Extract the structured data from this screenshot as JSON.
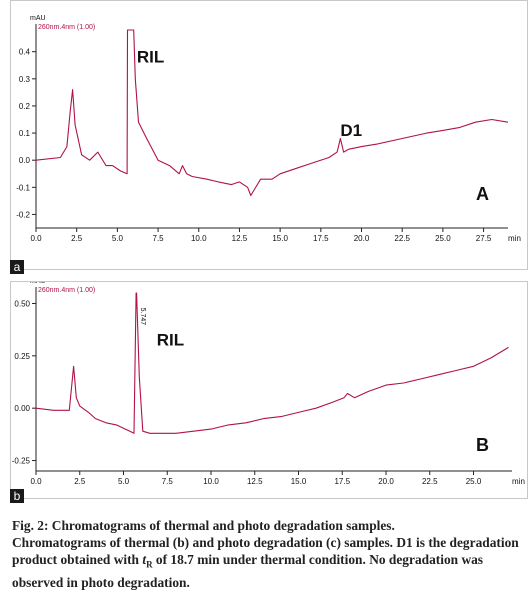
{
  "colors": {
    "trace": "#b0124a",
    "axis": "#222222",
    "text": "#111111",
    "tag_bg": "#1a1a1a"
  },
  "chart_data": [
    {
      "type": "line",
      "panel_tag": "a",
      "ylabel": "mAU",
      "method_label": "260nm.4nm (1.00)",
      "xlabel": "min",
      "panel_label": "A",
      "xlim": [
        0,
        29
      ],
      "ylim": [
        -0.25,
        0.48
      ],
      "xticks": [
        "0.0",
        "2.5",
        "5.0",
        "7.5",
        "10.0",
        "12.5",
        "15.0",
        "17.5",
        "20.0",
        "22.5",
        "25.0",
        "27.5"
      ],
      "yticks": [
        "0.4",
        "0.3",
        "0.2",
        "0.1",
        "0.0",
        "-0.1",
        "-0.2"
      ],
      "annotations": [
        {
          "text": "RIL",
          "x": 6.2,
          "y": 0.36
        },
        {
          "text": "D1",
          "x": 18.7,
          "y": 0.09
        }
      ],
      "series": [
        {
          "x": [
            0,
            1.5,
            1.9,
            2.1,
            2.25,
            2.4,
            2.8,
            3.3,
            3.8,
            4.3,
            4.7,
            5.2,
            5.6,
            5.62,
            6.0,
            6.1,
            6.3,
            6.8,
            7.5,
            8.2,
            8.8,
            9.0,
            9.25,
            9.6,
            10.5,
            11.2,
            12.0,
            12.5,
            13.0,
            13.2,
            13.4,
            13.8,
            14.5,
            15.0,
            16.0,
            17.0,
            18.0,
            18.5,
            18.7,
            18.9,
            19.2,
            20.0,
            21.0,
            22.5,
            24.0,
            25.0,
            26.0,
            27.0,
            28.0,
            29.0
          ],
          "y": [
            0.0,
            0.01,
            0.05,
            0.18,
            0.26,
            0.13,
            0.02,
            0.0,
            0.03,
            -0.02,
            -0.02,
            -0.04,
            -0.05,
            0.48,
            0.48,
            0.3,
            0.14,
            0.08,
            0.0,
            -0.02,
            -0.05,
            -0.02,
            -0.05,
            -0.06,
            -0.07,
            -0.08,
            -0.09,
            -0.08,
            -0.1,
            -0.13,
            -0.11,
            -0.07,
            -0.07,
            -0.05,
            -0.03,
            -0.01,
            0.01,
            0.03,
            0.08,
            0.03,
            0.04,
            0.05,
            0.06,
            0.08,
            0.1,
            0.11,
            0.12,
            0.14,
            0.15,
            0.14
          ]
        }
      ]
    },
    {
      "type": "line",
      "panel_tag": "b",
      "ylabel": "mAU",
      "method_label": "260nm.4nm (1.00)",
      "xlabel": "min",
      "panel_label": "B",
      "xlim": [
        0,
        27.2
      ],
      "ylim": [
        -0.3,
        0.55
      ],
      "xticks": [
        "0.0",
        "2.5",
        "5.0",
        "7.5",
        "10.0",
        "12.5",
        "15.0",
        "17.5",
        "20.0",
        "22.5",
        "25.0"
      ],
      "yticks": [
        "0.50",
        "0.25",
        "0.00",
        "-0.25"
      ],
      "annotations": [
        {
          "text": "RIL",
          "x": 6.9,
          "y": 0.3
        },
        {
          "text": "5.747",
          "x": 6.0,
          "y": 0.48
        }
      ],
      "series": [
        {
          "x": [
            0,
            1.0,
            1.9,
            2.15,
            2.3,
            2.5,
            3.0,
            3.4,
            4.0,
            4.6,
            5.1,
            5.6,
            5.72,
            5.75,
            5.9,
            6.1,
            6.5,
            7.0,
            8.0,
            9.0,
            10.0,
            11.0,
            12.0,
            13.0,
            14.0,
            15.0,
            16.0,
            17.0,
            17.6,
            17.8,
            18.2,
            19.0,
            20.0,
            21.0,
            22.0,
            23.0,
            24.0,
            25.0,
            26.0,
            27.0
          ],
          "y": [
            0.0,
            -0.01,
            -0.01,
            0.2,
            0.05,
            0.01,
            -0.02,
            -0.05,
            -0.07,
            -0.08,
            -0.1,
            -0.12,
            0.55,
            0.55,
            0.15,
            -0.11,
            -0.12,
            -0.12,
            -0.12,
            -0.11,
            -0.1,
            -0.08,
            -0.07,
            -0.05,
            -0.04,
            -0.02,
            0.0,
            0.03,
            0.05,
            0.07,
            0.05,
            0.08,
            0.11,
            0.12,
            0.14,
            0.16,
            0.18,
            0.2,
            0.24,
            0.29
          ]
        }
      ]
    }
  ],
  "caption": {
    "title": "Fig. 2: Chromatograms of thermal and photo degradation samples.",
    "body_before": "Chromatograms of thermal (b) and photo degradation (c) samples. D1 is the degradation product obtained with ",
    "t": "t",
    "sub": "R",
    "body_after": " of 18.7 min under thermal condition. No degradation was observed in photo degradation."
  }
}
